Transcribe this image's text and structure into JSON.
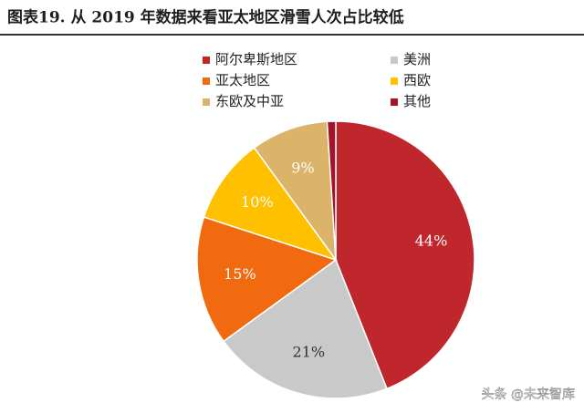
{
  "chart_data": {
    "type": "pie",
    "title": "图表19. 从 2019 年数据来看亚太地区滑雪人次占比较低",
    "categories": [
      "阿尔卑斯地区",
      "美洲",
      "亚太地区",
      "西欧",
      "东欧及中亚",
      "其他"
    ],
    "values": [
      44,
      21,
      15,
      10,
      9,
      1
    ],
    "value_labels": [
      "44%",
      "21%",
      "15%",
      "10%",
      "9%",
      null
    ],
    "colors": [
      "#c0272d",
      "#c9c9c9",
      "#f26a10",
      "#ffc000",
      "#dbb46a",
      "#a3142a"
    ],
    "watermark": "头条 @未来智库"
  }
}
